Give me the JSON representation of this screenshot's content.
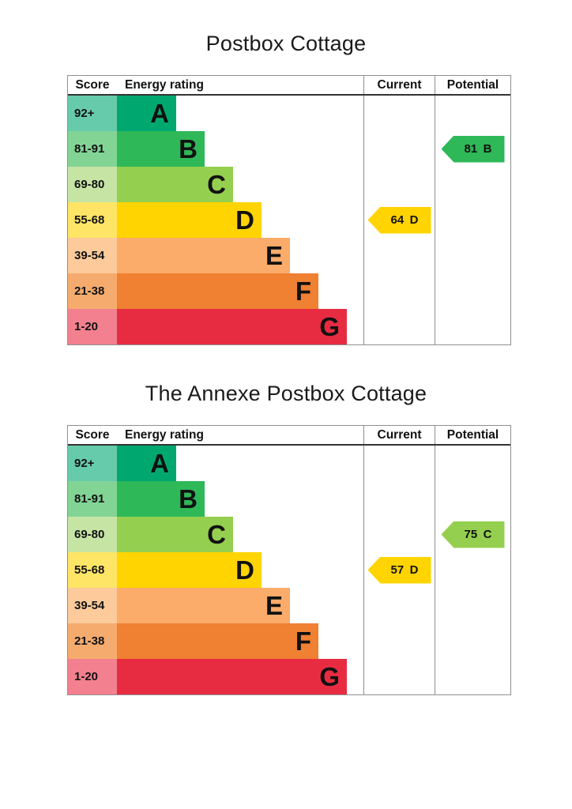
{
  "chart_data": [
    {
      "type": "bar",
      "title": "Postbox Cottage",
      "columns": {
        "score": "Score",
        "rating": "Energy rating",
        "current": "Current",
        "potential": "Potential"
      },
      "bands": [
        {
          "range": "92+",
          "letter": "A",
          "color": "#00a870",
          "tint": "#66cbab"
        },
        {
          "range": "81-91",
          "letter": "B",
          "color": "#2eb858",
          "tint": "#82d495"
        },
        {
          "range": "69-80",
          "letter": "C",
          "color": "#95cf4f",
          "tint": "#c6e5a5"
        },
        {
          "range": "55-68",
          "letter": "D",
          "color": "#ffd400",
          "tint": "#ffe566"
        },
        {
          "range": "39-54",
          "letter": "E",
          "color": "#fbab6a",
          "tint": "#fcca9b"
        },
        {
          "range": "21-38",
          "letter": "F",
          "color": "#f08032",
          "tint": "#f5ab6e"
        },
        {
          "range": "1-20",
          "letter": "G",
          "color": "#e72c41",
          "tint": "#f3808e"
        }
      ],
      "current": {
        "score": 64,
        "band": "D"
      },
      "potential": {
        "score": 81,
        "band": "B"
      }
    },
    {
      "type": "bar",
      "title": "The Annexe Postbox Cottage",
      "columns": {
        "score": "Score",
        "rating": "Energy rating",
        "current": "Current",
        "potential": "Potential"
      },
      "bands": [
        {
          "range": "92+",
          "letter": "A",
          "color": "#00a870",
          "tint": "#66cbab"
        },
        {
          "range": "81-91",
          "letter": "B",
          "color": "#2eb858",
          "tint": "#82d495"
        },
        {
          "range": "69-80",
          "letter": "C",
          "color": "#95cf4f",
          "tint": "#c6e5a5"
        },
        {
          "range": "55-68",
          "letter": "D",
          "color": "#ffd400",
          "tint": "#ffe566"
        },
        {
          "range": "39-54",
          "letter": "E",
          "color": "#fbab6a",
          "tint": "#fcca9b"
        },
        {
          "range": "21-38",
          "letter": "F",
          "color": "#f08032",
          "tint": "#f5ab6e"
        },
        {
          "range": "1-20",
          "letter": "G",
          "color": "#e72c41",
          "tint": "#f3808e"
        }
      ],
      "current": {
        "score": 57,
        "band": "D"
      },
      "potential": {
        "score": 75,
        "band": "C"
      }
    }
  ]
}
